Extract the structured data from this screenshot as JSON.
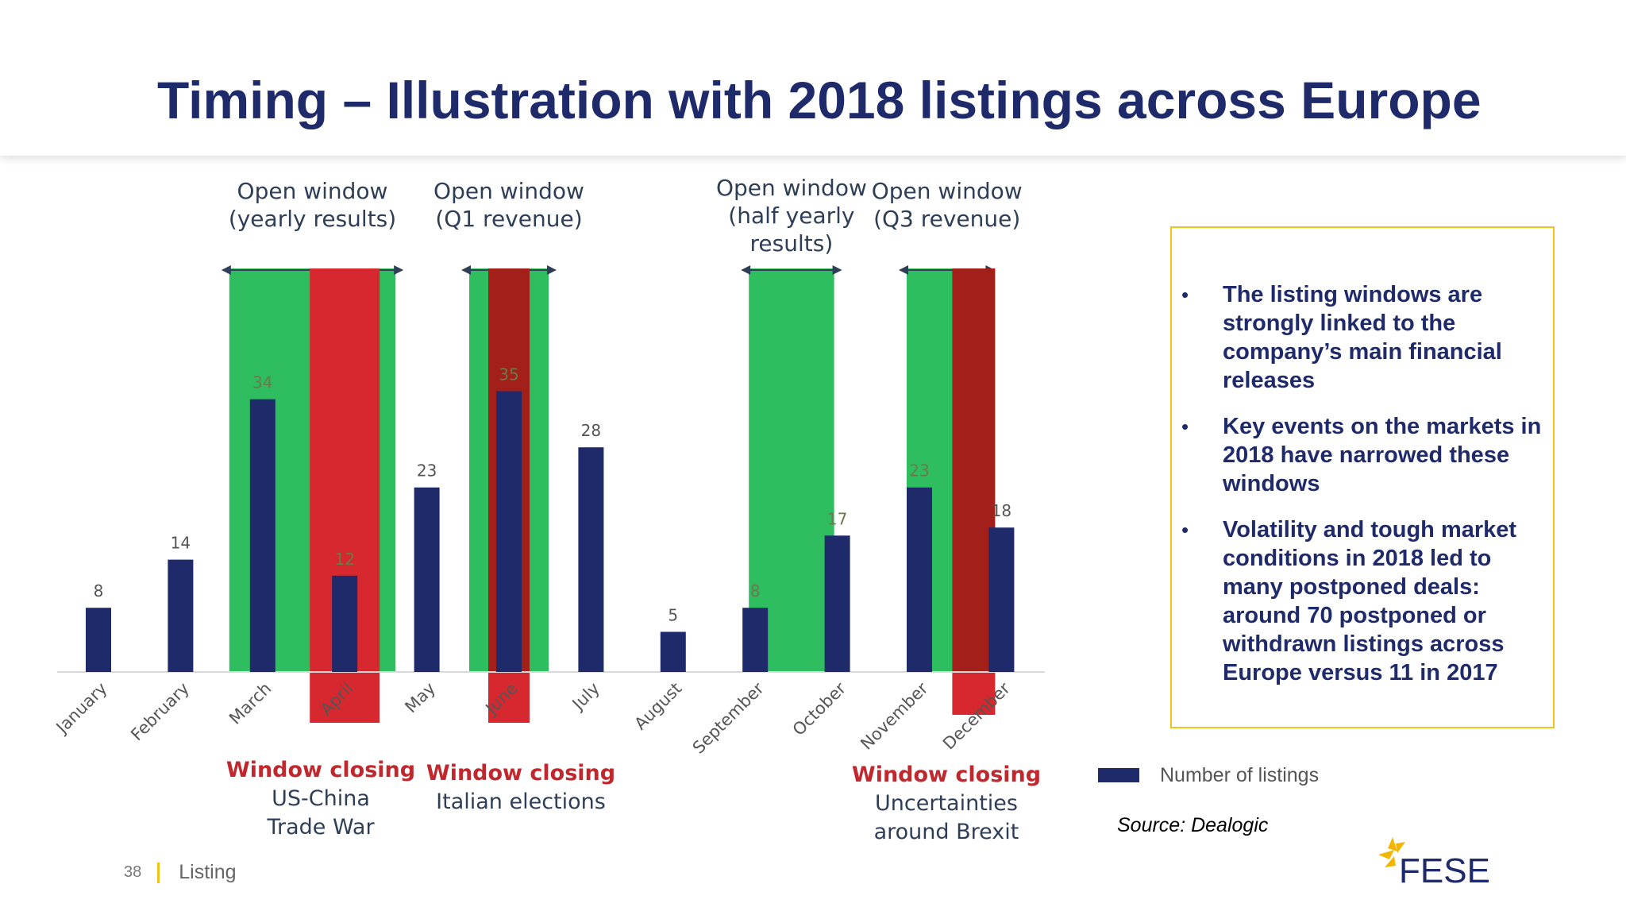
{
  "slide": {
    "title": "Timing – Illustration with 2018 listings across Europe",
    "page_number": "38",
    "section_label": "Listing",
    "source": "Source: Dealogic",
    "logo_text": "FESE"
  },
  "info_box": {
    "bullets": [
      "The listing windows are strongly linked to the company’s main financial releases",
      "Key events on the markets in 2018 have narrowed these windows",
      "Volatility and tough market conditions in 2018 led to many postponed deals: around 70 postponed or withdrawn listings across Europe versus 11 in 2017"
    ]
  },
  "legend": {
    "label": "Number of listings",
    "color": "#1f2a6b"
  },
  "chart_data": {
    "type": "bar",
    "categories": [
      "January",
      "February",
      "March",
      "April",
      "May",
      "June",
      "July",
      "August",
      "September",
      "October",
      "November",
      "December"
    ],
    "series": [
      {
        "name": "Number of listings",
        "values": [
          8,
          14,
          34,
          12,
          23,
          35,
          28,
          5,
          8,
          17,
          23,
          18
        ]
      }
    ],
    "ylim": [
      0,
      40
    ],
    "grid": false,
    "legend_position": "right",
    "colors": {
      "bar": "#1f2a6b",
      "open_window": "#2ebd5f",
      "closing_window": "#d7282f",
      "closing_window_dark": "#a31f1a",
      "open_label": "#2f3e57",
      "closing_label": "#c0282d",
      "closing_detail": "#2f3e57"
    },
    "open_windows": [
      {
        "label_lines": [
          "Open window",
          "(yearly results)"
        ],
        "start": "March",
        "end": "April"
      },
      {
        "label_lines": [
          "Open window",
          "(Q1 revenue)"
        ],
        "start": "June",
        "end": "June"
      },
      {
        "label_lines": [
          "Open window",
          "(half yearly",
          "results)"
        ],
        "start": "September",
        "end": "October"
      },
      {
        "label_lines": [
          "Open window",
          "(Q3 revenue)"
        ],
        "start": "November",
        "end": "December"
      }
    ],
    "closing_windows": [
      {
        "title": "Window closing",
        "detail_lines": [
          "US-China",
          "Trade War"
        ],
        "month": "April"
      },
      {
        "title": "Window closing",
        "detail_lines": [
          "Italian elections"
        ],
        "month": "June"
      },
      {
        "title": "Window closing",
        "detail_lines": [
          "Uncertainties",
          "around Brexit"
        ],
        "month": "December"
      }
    ]
  }
}
